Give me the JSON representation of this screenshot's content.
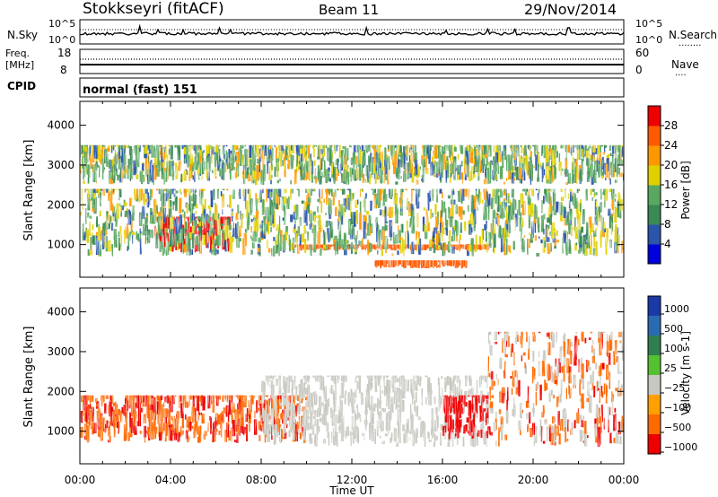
{
  "header": {
    "title": "Stokkseyri (fitACF)",
    "beam": "Beam 11",
    "date": "29/Nov/2014"
  },
  "noise_panel": {
    "left_label": "N.Sky",
    "left_ticks": [
      "10^5",
      "10^0"
    ],
    "right_ticks": [
      "10^5",
      "10^0"
    ],
    "right_label": "N.Search",
    "right_legend_line": "........"
  },
  "freq_panel": {
    "left_label_1": "Freq.",
    "left_label_2": "[MHz]",
    "left_ticks": [
      "18",
      "8"
    ],
    "right_ticks": [
      "60",
      "0"
    ],
    "right_label": "Nave",
    "right_legend_line": "...."
  },
  "cpid_panel": {
    "label": "CPID",
    "mode": "normal (fast) 151"
  },
  "colors": {
    "power_scale": [
      "#0000dd",
      "#2a55aa",
      "#3a8a55",
      "#5aa860",
      "#e0d000",
      "#ff9800",
      "#ff5a00",
      "#ee0000"
    ],
    "velocity_scale": [
      "#1a3aa8",
      "#2a6ab0",
      "#2f7f50",
      "#55c030",
      "#c8c8c0",
      "#ffa000",
      "#ff6a00",
      "#ee0000"
    ],
    "grey_scatter": "#c8c8c0"
  },
  "chart_data": [
    {
      "type": "heatmap",
      "name": "power",
      "ylabel": "Slant Range [km]",
      "xlabel": "",
      "x_ticks": [
        "00:00",
        "04:00",
        "08:00",
        "12:00",
        "16:00",
        "20:00",
        "00:00"
      ],
      "xlim_hours": [
        0,
        24
      ],
      "y_ticks": [
        1000,
        2000,
        3000,
        4000
      ],
      "ylim_km": [
        180,
        4600
      ],
      "colorbar": {
        "label": "Power [dB]",
        "ticks": [
          "4",
          "8",
          "12",
          "16",
          "20",
          "24",
          "28"
        ],
        "range": [
          0,
          32
        ]
      },
      "features": [
        {
          "hours": [
            3.3,
            6.6
          ],
          "range_km": [
            800,
            1700
          ],
          "level_db": 28
        },
        {
          "hours": [
            9.2,
            18.0
          ],
          "range_km": [
            850,
            1000
          ],
          "level_db": 27
        },
        {
          "hours": [
            13.0,
            17.0
          ],
          "range_km": [
            400,
            600
          ],
          "level_db": 26
        },
        {
          "hours": [
            0,
            24
          ],
          "range_km": [
            700,
            2400
          ],
          "level_db": 14
        },
        {
          "hours": [
            0,
            24
          ],
          "range_km": [
            2500,
            3500
          ],
          "level_db": 10
        }
      ]
    },
    {
      "type": "heatmap",
      "name": "velocity",
      "ylabel": "Slant Range [km]",
      "xlabel": "Time UT",
      "x_ticks": [
        "00:00",
        "04:00",
        "08:00",
        "12:00",
        "16:00",
        "20:00",
        "00:00"
      ],
      "xlim_hours": [
        0,
        24
      ],
      "y_ticks": [
        1000,
        2000,
        3000,
        4000
      ],
      "ylim_km": [
        180,
        4600
      ],
      "colorbar": {
        "label": "Velocity [m s-1]",
        "ticks": [
          "1000",
          "500",
          "100",
          "25",
          "−25",
          "−100",
          "−500",
          "−1000"
        ]
      },
      "features": [
        {
          "hours": [
            0,
            10
          ],
          "range_km": [
            700,
            1900
          ],
          "velocity": -300
        },
        {
          "hours": [
            8,
            18
          ],
          "range_km": [
            600,
            2400
          ],
          "velocity": 0
        },
        {
          "hours": [
            16,
            18
          ],
          "range_km": [
            800,
            1900
          ],
          "velocity": -800
        },
        {
          "hours": [
            18,
            24
          ],
          "range_km": [
            600,
            3500
          ],
          "velocity": -150
        }
      ]
    }
  ]
}
